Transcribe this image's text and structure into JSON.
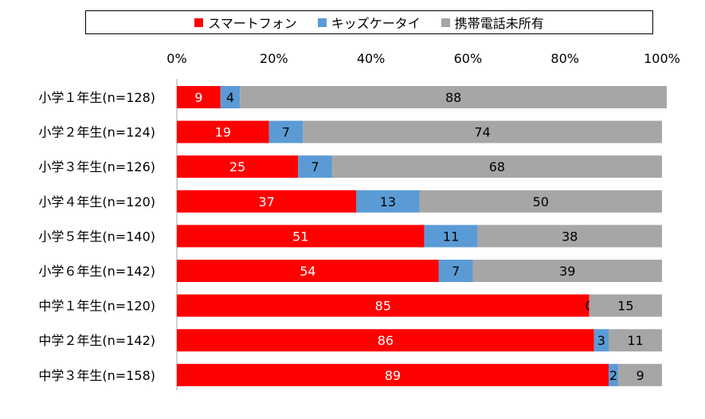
{
  "chart_data": {
    "type": "bar",
    "orientation": "horizontal",
    "stacked": true,
    "percent_scale": true,
    "categories": [
      "小学１年生(n=128)",
      "小学２年生(n=124)",
      "小学３年生(n=126)",
      "小学４年生(n=120)",
      "小学５年生(n=140)",
      "小学６年生(n=142)",
      "中学１年生(n=120)",
      "中学２年生(n=142)",
      "中学３年生(n=158)"
    ],
    "series": [
      {
        "name": "スマートフォン",
        "color": "#ff0000",
        "label_color": "#ffffff",
        "values": [
          9,
          19,
          25,
          37,
          51,
          54,
          85,
          86,
          89
        ]
      },
      {
        "name": "キッズケータイ",
        "color": "#5b9bd5",
        "label_color": "#000000",
        "values": [
          4,
          7,
          7,
          13,
          11,
          7,
          0,
          3,
          2
        ]
      },
      {
        "name": "携帯電話未所有",
        "color": "#a6a6a6",
        "label_color": "#000000",
        "values": [
          88,
          74,
          68,
          50,
          38,
          39,
          15,
          11,
          9
        ]
      }
    ],
    "x_ticks": [
      "0%",
      "20%",
      "40%",
      "60%",
      "80%",
      "100%"
    ],
    "x_axis_position": "top",
    "xlim": [
      0,
      100
    ],
    "grid": false,
    "legend_position": "top"
  }
}
